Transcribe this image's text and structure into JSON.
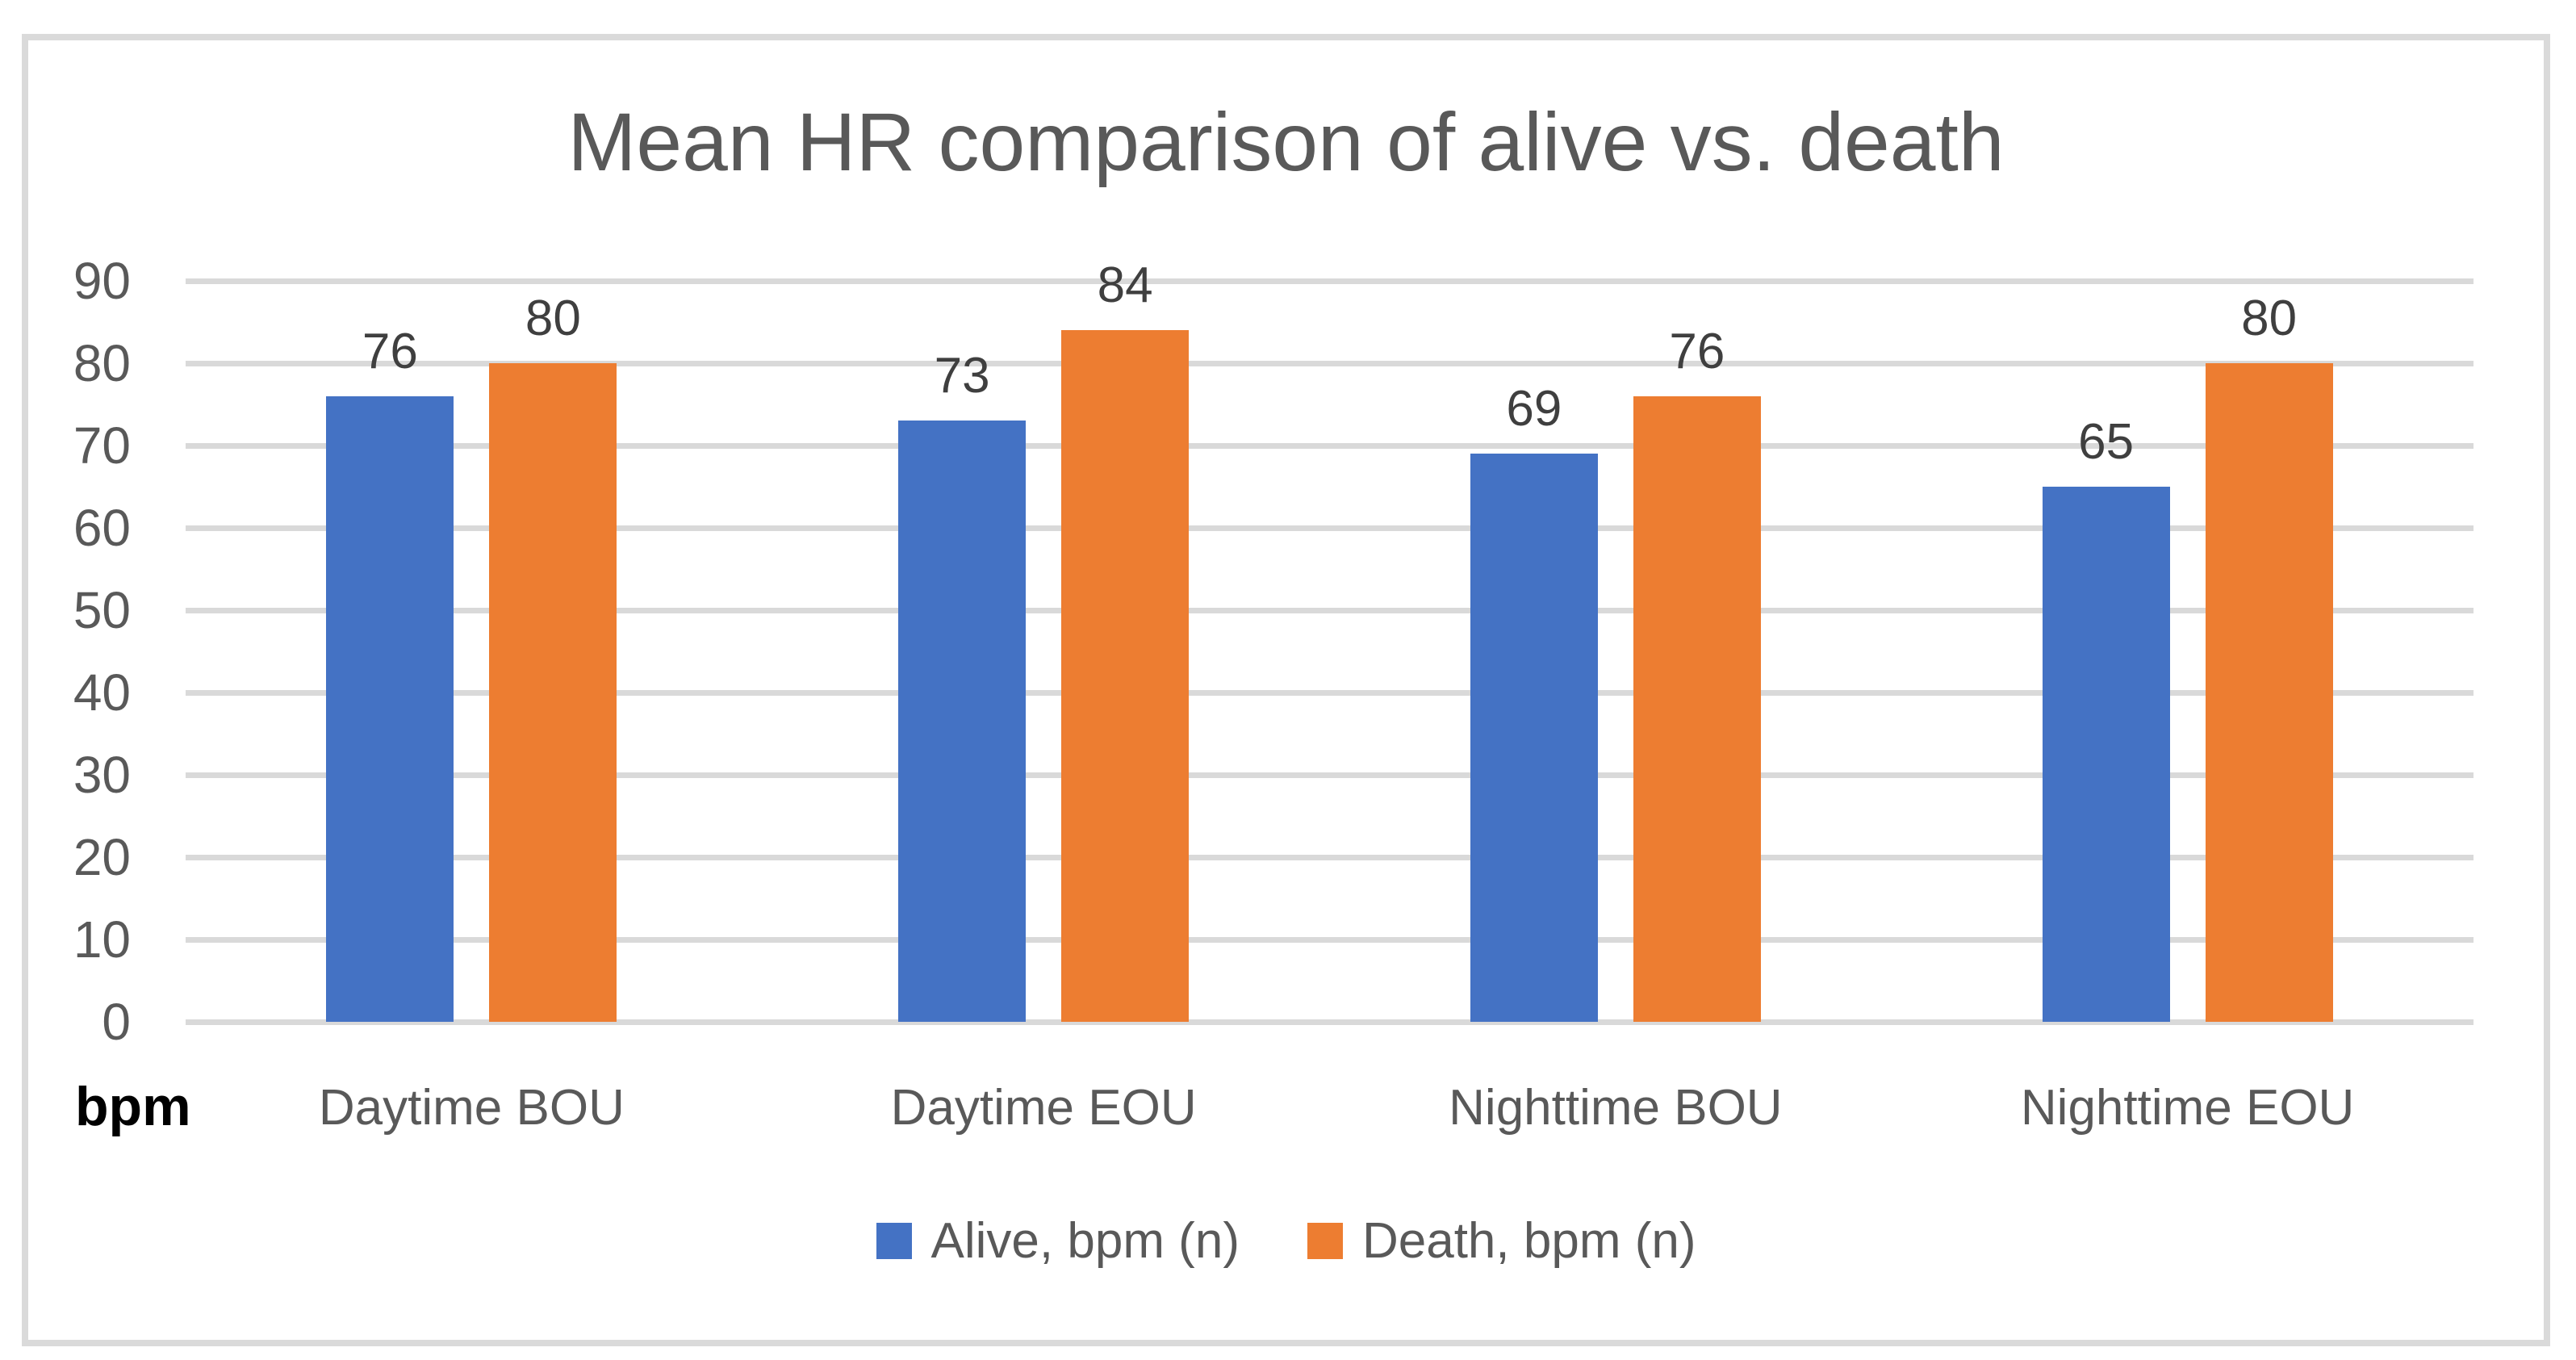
{
  "chart_data": {
    "type": "bar",
    "title": "Mean HR comparison of alive vs. death",
    "categories": [
      "Daytime BOU",
      "Daytime EOU",
      "Nighttime BOU",
      "Nighttime EOU"
    ],
    "series": [
      {
        "name": "Alive, bpm (n)",
        "color": "#4472C4",
        "values": [
          76,
          73,
          69,
          65
        ]
      },
      {
        "name": "Death, bpm (n)",
        "color": "#ED7D31",
        "values": [
          80,
          84,
          76,
          80
        ]
      }
    ],
    "data_labels": [
      [
        "76",
        "80"
      ],
      [
        "73",
        "84"
      ],
      [
        "69",
        "76"
      ],
      [
        "65",
        "80"
      ]
    ],
    "ylabel": "bpm",
    "yticks": [
      0,
      10,
      20,
      30,
      40,
      50,
      60,
      70,
      80,
      90
    ],
    "ylim": [
      0,
      90
    ],
    "grid": true,
    "legend_position": "bottom",
    "colors": {
      "grid": "#d9d9d9",
      "frame_border": "#dadada",
      "title_text": "#595959",
      "axis_text": "#595959",
      "data_label_text": "#3f3f3f",
      "unit_label_text": "#000000"
    }
  }
}
